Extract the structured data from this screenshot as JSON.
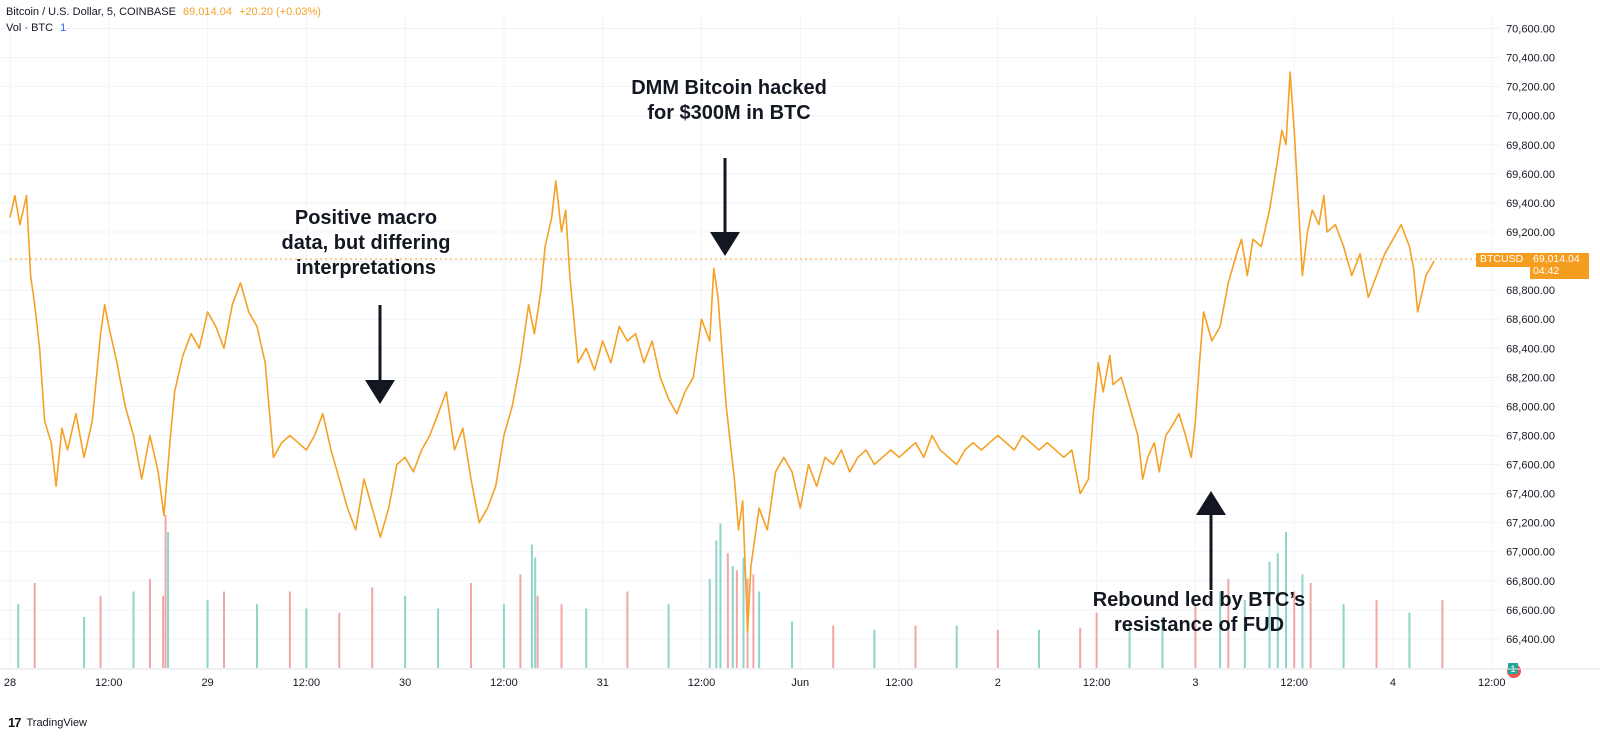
{
  "header": {
    "symbol_desc": "Bitcoin / U.S. Dollar, 5, COINBASE",
    "last_price": "69,014.04",
    "change": "+20.20 (+0.03%)",
    "vol_label": "Vol · BTC",
    "vol_value": "1"
  },
  "price_tag": {
    "ticker": "BTCUSD",
    "price": "69,014.04",
    "countdown": "04:42"
  },
  "brand": {
    "logo": "17",
    "name": "TradingView"
  },
  "annotations": [
    {
      "lines": [
        "Positive macro",
        "data, but differing",
        "interpretations"
      ]
    },
    {
      "lines": [
        "DMM Bitcoin hacked",
        "for $300M in BTC"
      ]
    },
    {
      "lines": [
        "Rebound led by BTC’s",
        "resistance of FUD"
      ]
    }
  ],
  "colors": {
    "line": "#f5a124",
    "vol_up": "#8fd3c9",
    "vol_down": "#f3a6a6",
    "last_price": "#f59d1f",
    "grid": "#f0f3fa"
  },
  "chart_data": {
    "type": "line",
    "title": "Bitcoin / U.S. Dollar, 5, COINBASE",
    "xlabel": "",
    "ylabel": "",
    "ylim": [
      66200,
      70700
    ],
    "y_ticks": [
      "70,600.00",
      "70,400.00",
      "70,200.00",
      "70,000.00",
      "69,800.00",
      "69,600.00",
      "69,400.00",
      "69,200.00",
      "69,000.00",
      "68,800.00",
      "68,600.00",
      "68,400.00",
      "68,200.00",
      "68,000.00",
      "67,800.00",
      "67,600.00",
      "67,400.00",
      "67,200.00",
      "67,000.00",
      "66,800.00",
      "66,600.00",
      "66,400.00"
    ],
    "x_ticks": [
      "28",
      "12:00",
      "29",
      "12:00",
      "30",
      "12:00",
      "31",
      "12:00",
      "Jun",
      "12:00",
      "2",
      "12:00",
      "3",
      "12:00",
      "4",
      "12:00"
    ],
    "x_tick_t": [
      0,
      12,
      24,
      36,
      48,
      60,
      72,
      84,
      96,
      108,
      120,
      132,
      144,
      156,
      168,
      180
    ],
    "t_range": [
      0,
      181
    ],
    "last_price": 69014.04,
    "series": [
      {
        "name": "BTCUSD close",
        "points": [
          [
            0,
            69300
          ],
          [
            0.6,
            69450
          ],
          [
            1.2,
            69250
          ],
          [
            2,
            69450
          ],
          [
            2.5,
            68900
          ],
          [
            3,
            68700
          ],
          [
            3.6,
            68400
          ],
          [
            4.2,
            67900
          ],
          [
            5,
            67750
          ],
          [
            5.6,
            67450
          ],
          [
            6.3,
            67850
          ],
          [
            7,
            67700
          ],
          [
            8,
            67950
          ],
          [
            9,
            67650
          ],
          [
            10,
            67900
          ],
          [
            11,
            68500
          ],
          [
            11.5,
            68700
          ],
          [
            12,
            68550
          ],
          [
            13,
            68300
          ],
          [
            14,
            68000
          ],
          [
            15,
            67800
          ],
          [
            16,
            67500
          ],
          [
            17,
            67800
          ],
          [
            18,
            67550
          ],
          [
            18.7,
            67250
          ],
          [
            19.5,
            67800
          ],
          [
            20,
            68100
          ],
          [
            21,
            68350
          ],
          [
            22,
            68500
          ],
          [
            23,
            68400
          ],
          [
            24,
            68650
          ],
          [
            25,
            68550
          ],
          [
            26,
            68400
          ],
          [
            27,
            68700
          ],
          [
            28,
            68850
          ],
          [
            29,
            68650
          ],
          [
            30,
            68550
          ],
          [
            31,
            68300
          ],
          [
            32,
            67650
          ],
          [
            33,
            67750
          ],
          [
            34,
            67800
          ],
          [
            35,
            67750
          ],
          [
            36,
            67700
          ],
          [
            37,
            67800
          ],
          [
            38,
            67950
          ],
          [
            39,
            67700
          ],
          [
            40,
            67500
          ],
          [
            41,
            67300
          ],
          [
            42,
            67150
          ],
          [
            43,
            67500
          ],
          [
            44,
            67300
          ],
          [
            45,
            67100
          ],
          [
            46,
            67300
          ],
          [
            47,
            67600
          ],
          [
            48,
            67650
          ],
          [
            49,
            67550
          ],
          [
            50,
            67700
          ],
          [
            51,
            67800
          ],
          [
            52,
            67950
          ],
          [
            53,
            68100
          ],
          [
            54,
            67700
          ],
          [
            55,
            67850
          ],
          [
            56,
            67500
          ],
          [
            57,
            67200
          ],
          [
            58,
            67300
          ],
          [
            59,
            67450
          ],
          [
            60,
            67800
          ],
          [
            61,
            68000
          ],
          [
            62,
            68300
          ],
          [
            63,
            68700
          ],
          [
            63.7,
            68500
          ],
          [
            64.5,
            68800
          ],
          [
            65,
            69100
          ],
          [
            65.8,
            69300
          ],
          [
            66.3,
            69550
          ],
          [
            67,
            69200
          ],
          [
            67.5,
            69350
          ],
          [
            68,
            68900
          ],
          [
            69,
            68300
          ],
          [
            70,
            68400
          ],
          [
            71,
            68250
          ],
          [
            72,
            68450
          ],
          [
            73,
            68300
          ],
          [
            74,
            68550
          ],
          [
            75,
            68450
          ],
          [
            76,
            68500
          ],
          [
            77,
            68300
          ],
          [
            78,
            68450
          ],
          [
            79,
            68200
          ],
          [
            80,
            68050
          ],
          [
            81,
            67950
          ],
          [
            82,
            68100
          ],
          [
            83,
            68200
          ],
          [
            84,
            68600
          ],
          [
            85,
            68450
          ],
          [
            85.5,
            68950
          ],
          [
            86,
            68750
          ],
          [
            87,
            68000
          ],
          [
            88,
            67500
          ],
          [
            88.5,
            67150
          ],
          [
            89,
            67350
          ],
          [
            89.6,
            66450
          ],
          [
            90,
            66900
          ],
          [
            90.5,
            67100
          ],
          [
            91,
            67300
          ],
          [
            92,
            67150
          ],
          [
            93,
            67550
          ],
          [
            94,
            67650
          ],
          [
            95,
            67550
          ],
          [
            96,
            67300
          ],
          [
            97,
            67600
          ],
          [
            98,
            67450
          ],
          [
            99,
            67650
          ],
          [
            100,
            67600
          ],
          [
            101,
            67700
          ],
          [
            102,
            67550
          ],
          [
            103,
            67650
          ],
          [
            104,
            67700
          ],
          [
            105,
            67600
          ],
          [
            106,
            67650
          ],
          [
            107,
            67700
          ],
          [
            108,
            67650
          ],
          [
            109,
            67700
          ],
          [
            110,
            67750
          ],
          [
            111,
            67650
          ],
          [
            112,
            67800
          ],
          [
            113,
            67700
          ],
          [
            114,
            67650
          ],
          [
            115,
            67600
          ],
          [
            116,
            67700
          ],
          [
            117,
            67750
          ],
          [
            118,
            67700
          ],
          [
            119,
            67750
          ],
          [
            120,
            67800
          ],
          [
            121,
            67750
          ],
          [
            122,
            67700
          ],
          [
            123,
            67800
          ],
          [
            124,
            67750
          ],
          [
            125,
            67700
          ],
          [
            126,
            67750
          ],
          [
            127,
            67700
          ],
          [
            128,
            67650
          ],
          [
            129,
            67700
          ],
          [
            130,
            67400
          ],
          [
            131,
            67500
          ],
          [
            131.6,
            67950
          ],
          [
            132.2,
            68300
          ],
          [
            132.8,
            68100
          ],
          [
            133.6,
            68350
          ],
          [
            134,
            68150
          ],
          [
            135,
            68200
          ],
          [
            136,
            68000
          ],
          [
            137,
            67800
          ],
          [
            137.6,
            67500
          ],
          [
            138.2,
            67650
          ],
          [
            139,
            67750
          ],
          [
            139.6,
            67550
          ],
          [
            140.4,
            67800
          ],
          [
            141,
            67850
          ],
          [
            142,
            67950
          ],
          [
            142.8,
            67800
          ],
          [
            143.5,
            67650
          ],
          [
            144,
            67900
          ],
          [
            144.5,
            68300
          ],
          [
            145,
            68650
          ],
          [
            146,
            68450
          ],
          [
            147,
            68550
          ],
          [
            148,
            68850
          ],
          [
            149,
            69050
          ],
          [
            149.6,
            69150
          ],
          [
            150.3,
            68900
          ],
          [
            151,
            69150
          ],
          [
            152,
            69100
          ],
          [
            153,
            69350
          ],
          [
            154,
            69700
          ],
          [
            154.5,
            69900
          ],
          [
            155,
            69800
          ],
          [
            155.5,
            70300
          ],
          [
            156,
            69900
          ],
          [
            156.5,
            69400
          ],
          [
            157,
            68900
          ],
          [
            157.6,
            69200
          ],
          [
            158.2,
            69350
          ],
          [
            159,
            69250
          ],
          [
            159.6,
            69450
          ],
          [
            160,
            69200
          ],
          [
            161,
            69250
          ],
          [
            162,
            69100
          ],
          [
            163,
            68900
          ],
          [
            164,
            69050
          ],
          [
            165,
            68750
          ],
          [
            166,
            68900
          ],
          [
            167,
            69050
          ],
          [
            168,
            69150
          ],
          [
            169,
            69250
          ],
          [
            170,
            69100
          ],
          [
            170.5,
            68950
          ],
          [
            171,
            68650
          ],
          [
            172,
            68900
          ],
          [
            173,
            69000
          ]
        ]
      }
    ],
    "volume": {
      "label": "Vol · BTC",
      "t": [
        1,
        3,
        9,
        11,
        15,
        17,
        18.6,
        18.9,
        19.2,
        24,
        26,
        30,
        34,
        36,
        40,
        44,
        48,
        52,
        56,
        60,
        62,
        63.4,
        63.8,
        64.1,
        67,
        70,
        75,
        80,
        85,
        85.8,
        86.3,
        87.2,
        87.8,
        88.3,
        89.1,
        89.6,
        90.3,
        91,
        95,
        100,
        105,
        110,
        115,
        120,
        125,
        130,
        132,
        136,
        140,
        144,
        147,
        148,
        150,
        153,
        154,
        155,
        156,
        157,
        158,
        162,
        166,
        170,
        174
      ],
      "v": [
        150,
        200,
        120,
        170,
        180,
        210,
        170,
        360,
        320,
        160,
        180,
        150,
        180,
        140,
        130,
        190,
        170,
        140,
        200,
        150,
        220,
        290,
        260,
        170,
        150,
        140,
        180,
        150,
        210,
        300,
        340,
        270,
        240,
        230,
        260,
        210,
        220,
        180,
        110,
        100,
        90,
        100,
        100,
        90,
        90,
        95,
        130,
        110,
        120,
        150,
        180,
        210,
        160,
        250,
        270,
        320,
        180,
        220,
        200,
        150,
        160,
        130,
        160
      ],
      "dir": [
        "u",
        "d",
        "u",
        "d",
        "u",
        "d",
        "d",
        "d",
        "u",
        "u",
        "d",
        "u",
        "d",
        "u",
        "d",
        "d",
        "u",
        "u",
        "d",
        "u",
        "d",
        "u",
        "u",
        "d",
        "d",
        "u",
        "d",
        "u",
        "u",
        "u",
        "u",
        "d",
        "u",
        "d",
        "u",
        "d",
        "d",
        "u",
        "u",
        "d",
        "u",
        "d",
        "u",
        "d",
        "u",
        "d",
        "d",
        "u",
        "u",
        "d",
        "u",
        "d",
        "u",
        "u",
        "u",
        "u",
        "d",
        "u",
        "d",
        "u",
        "d",
        "u",
        "d"
      ]
    }
  }
}
